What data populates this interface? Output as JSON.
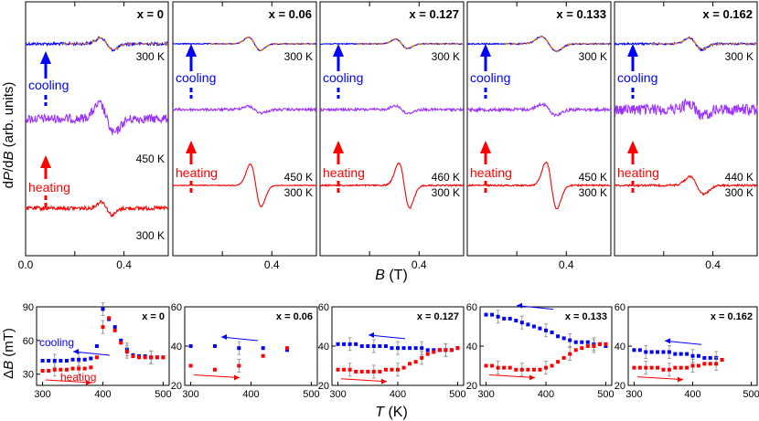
{
  "figure": {
    "top_ylabel_prefix": "d",
    "top_ylabel_P": "P",
    "top_ylabel_slash": "/d",
    "top_ylabel_B": "B",
    "top_ylabel_units": " (arb. units)",
    "top_xlabel_symbol": "B",
    "top_xlabel_unit": " (T)",
    "bottom_ylabel_delta": "Δ",
    "bottom_ylabel_symbol": "B",
    "bottom_ylabel_unit": " (mT)",
    "bottom_xlabel_symbol": "T",
    "bottom_xlabel_unit": " (K)"
  },
  "colors": {
    "cooling": "#0000ff",
    "mid": "#9b30ff",
    "heating": "#ff0000",
    "fit": "#e07020",
    "errorbar": "#888888"
  },
  "chart_data": [
    {
      "type": "line",
      "title": "x = 0",
      "xlim": [
        0.0,
        0.58
      ],
      "xticks": [
        "0.0",
        "0.4"
      ],
      "curves": [
        {
          "color": "cooling",
          "label": "300 K",
          "center": 0.33,
          "amp": 0.9,
          "width": 0.026,
          "noise": 0.22
        },
        {
          "color": "mid",
          "label": "450 K",
          "center": 0.33,
          "amp": 2.2,
          "width": 0.03,
          "noise": 0.7
        },
        {
          "color": "heating",
          "label": "300 K",
          "center": 0.33,
          "amp": 1.0,
          "width": 0.022,
          "noise": 0.3
        }
      ],
      "arrows": {
        "cooling_label": "cooling",
        "heating_label": "heating"
      }
    },
    {
      "type": "line",
      "title": "x = 0.06",
      "xlim": [
        0.0,
        0.58
      ],
      "xticks": [
        "0.4"
      ],
      "curves": [
        {
          "color": "cooling",
          "label": "300 K",
          "center": 0.33,
          "amp": 1.0,
          "width": 0.024,
          "noise": 0.08
        },
        {
          "color": "mid",
          "label": "450 K",
          "center": 0.33,
          "amp": 0.5,
          "width": 0.028,
          "noise": 0.2
        },
        {
          "color": "heating",
          "label": "300 K",
          "center": 0.335,
          "amp": 3.2,
          "width": 0.022,
          "noise": 0.06
        }
      ],
      "arrows": {
        "cooling_label": "cooling",
        "heating_label": "heating"
      }
    },
    {
      "type": "line",
      "title": "x = 0.127",
      "xlim": [
        0.0,
        0.58
      ],
      "xticks": [
        "0.4"
      ],
      "curves": [
        {
          "color": "cooling",
          "label": "300 K",
          "center": 0.33,
          "amp": 0.7,
          "width": 0.024,
          "noise": 0.08
        },
        {
          "color": "mid",
          "label": "460 K",
          "center": 0.33,
          "amp": 0.6,
          "width": 0.025,
          "noise": 0.2
        },
        {
          "color": "heating",
          "label": "300 K",
          "center": 0.34,
          "amp": 3.4,
          "width": 0.022,
          "noise": 0.12
        }
      ],
      "arrows": {
        "cooling_label": "cooling",
        "heating_label": "heating"
      }
    },
    {
      "type": "line",
      "title": "x = 0.133",
      "xlim": [
        0.0,
        0.58
      ],
      "xticks": [
        "0.4"
      ],
      "curves": [
        {
          "color": "cooling",
          "label": "300 K",
          "center": 0.33,
          "amp": 1.1,
          "width": 0.03,
          "noise": 0.1
        },
        {
          "color": "mid",
          "label": "450 K",
          "center": 0.33,
          "amp": 0.8,
          "width": 0.028,
          "noise": 0.25
        },
        {
          "color": "heating",
          "label": "300 K",
          "center": 0.34,
          "amp": 3.5,
          "width": 0.022,
          "noise": 0.12
        }
      ],
      "arrows": {
        "cooling_label": "cooling",
        "heating_label": "heating"
      }
    },
    {
      "type": "line",
      "title": "x = 0.162",
      "xlim": [
        0.0,
        0.58
      ],
      "xticks": [
        "0.4"
      ],
      "curves": [
        {
          "color": "cooling",
          "label": "300 K",
          "center": 0.33,
          "amp": 0.9,
          "width": 0.026,
          "noise": 0.15
        },
        {
          "color": "mid",
          "label": "440 K",
          "center": 0.33,
          "amp": 0.9,
          "width": 0.03,
          "noise": 0.9
        },
        {
          "color": "heating",
          "label": "300 K",
          "center": 0.335,
          "amp": 1.3,
          "width": 0.028,
          "noise": 0.15
        }
      ],
      "arrows": {
        "cooling_label": "cooling",
        "heating_label": "heating"
      }
    },
    {
      "type": "scatter",
      "title": "x = 0",
      "xlim": [
        290,
        510
      ],
      "ylim": [
        20,
        90
      ],
      "yticks": [
        30,
        60,
        90
      ],
      "xticks": [
        300,
        400,
        500
      ],
      "cooling": {
        "x": [
          300,
          310,
          320,
          330,
          340,
          350,
          360,
          370,
          380,
          390,
          400,
          410,
          420,
          430,
          440,
          450,
          460,
          470,
          480,
          490,
          500
        ],
        "y": [
          42,
          42,
          42,
          42,
          42,
          43,
          43,
          43,
          44,
          55,
          88,
          79,
          72,
          60,
          52,
          47,
          46,
          46,
          45,
          45,
          45
        ]
      },
      "heating": {
        "x": [
          300,
          310,
          320,
          330,
          340,
          350,
          360,
          370,
          380,
          390,
          400,
          410,
          420,
          430,
          440,
          450,
          460,
          470,
          480,
          490,
          500
        ],
        "y": [
          33,
          33,
          34,
          34,
          34,
          35,
          35,
          35,
          36,
          45,
          72,
          80,
          69,
          58,
          50,
          46,
          45,
          45,
          45,
          45,
          45
        ]
      },
      "labels": {
        "cooling": "cooling",
        "heating": "heating"
      }
    },
    {
      "type": "scatter",
      "title": "x = 0.06",
      "xlim": [
        290,
        510
      ],
      "ylim": [
        20,
        60
      ],
      "yticks": [
        20,
        40,
        60
      ],
      "xticks": [
        300,
        400,
        500
      ],
      "cooling": {
        "x": [
          300,
          340,
          380,
          420,
          460
        ],
        "y": [
          40,
          40,
          39,
          39,
          38
        ]
      },
      "heating": {
        "x": [
          300,
          340,
          380,
          420,
          460
        ],
        "y": [
          30,
          28,
          30,
          35,
          39
        ]
      }
    },
    {
      "type": "scatter",
      "title": "x = 0.127",
      "xlim": [
        290,
        510
      ],
      "ylim": [
        20,
        60
      ],
      "yticks": [
        20,
        40,
        60
      ],
      "xticks": [
        300,
        400,
        500
      ],
      "cooling": {
        "x": [
          300,
          310,
          320,
          330,
          340,
          350,
          360,
          370,
          380,
          390,
          400,
          410,
          420,
          430,
          440,
          450,
          460,
          470,
          480,
          490,
          500
        ],
        "y": [
          41,
          41,
          41,
          41,
          40,
          40,
          40,
          40,
          40,
          39,
          39,
          39,
          39,
          39,
          39,
          38,
          38,
          38,
          38,
          38,
          39
        ]
      },
      "heating": {
        "x": [
          300,
          310,
          320,
          330,
          340,
          350,
          360,
          370,
          380,
          390,
          400,
          410,
          420,
          430,
          440,
          450,
          460,
          470,
          480,
          490,
          500
        ],
        "y": [
          28,
          28,
          28,
          27,
          27,
          27,
          27,
          27,
          28,
          28,
          28,
          29,
          31,
          32,
          34,
          36,
          37,
          38,
          38,
          38,
          39
        ]
      }
    },
    {
      "type": "scatter",
      "title": "x = 0.133",
      "xlim": [
        290,
        510
      ],
      "ylim": [
        20,
        60
      ],
      "yticks": [
        20,
        40,
        60
      ],
      "xticks": [
        300,
        400,
        500
      ],
      "cooling": {
        "x": [
          300,
          310,
          320,
          330,
          340,
          350,
          360,
          370,
          380,
          390,
          400,
          410,
          420,
          430,
          440,
          450,
          460,
          470,
          480,
          490,
          500
        ],
        "y": [
          56,
          56,
          55,
          54,
          54,
          53,
          52,
          51,
          50,
          49,
          48,
          47,
          45,
          44,
          43,
          42,
          42,
          42,
          41,
          41,
          40
        ]
      },
      "heating": {
        "x": [
          300,
          310,
          320,
          330,
          340,
          350,
          360,
          370,
          380,
          390,
          400,
          410,
          420,
          430,
          440,
          450,
          460,
          470,
          480,
          490,
          500
        ],
        "y": [
          30,
          30,
          29,
          29,
          29,
          28,
          28,
          28,
          28,
          28,
          29,
          30,
          32,
          34,
          36,
          38,
          39,
          40,
          40,
          41,
          41
        ]
      }
    },
    {
      "type": "scatter",
      "title": "x = 0.162",
      "xlim": [
        290,
        510
      ],
      "ylim": [
        20,
        60
      ],
      "yticks": [
        20,
        40,
        60
      ],
      "xticks": [
        300,
        400,
        500
      ],
      "cooling": {
        "x": [
          300,
          310,
          320,
          330,
          340,
          350,
          360,
          370,
          380,
          390,
          400,
          410,
          420,
          430,
          440,
          450
        ],
        "y": [
          38,
          38,
          37,
          37,
          37,
          37,
          37,
          36,
          36,
          36,
          35,
          35,
          34,
          34,
          34,
          33
        ]
      },
      "heating": {
        "x": [
          300,
          310,
          320,
          330,
          340,
          350,
          360,
          370,
          380,
          390,
          400,
          410,
          420,
          430,
          440,
          450
        ],
        "y": [
          29,
          29,
          29,
          29,
          29,
          28,
          28,
          29,
          29,
          29,
          30,
          30,
          31,
          31,
          31,
          33
        ]
      }
    }
  ]
}
